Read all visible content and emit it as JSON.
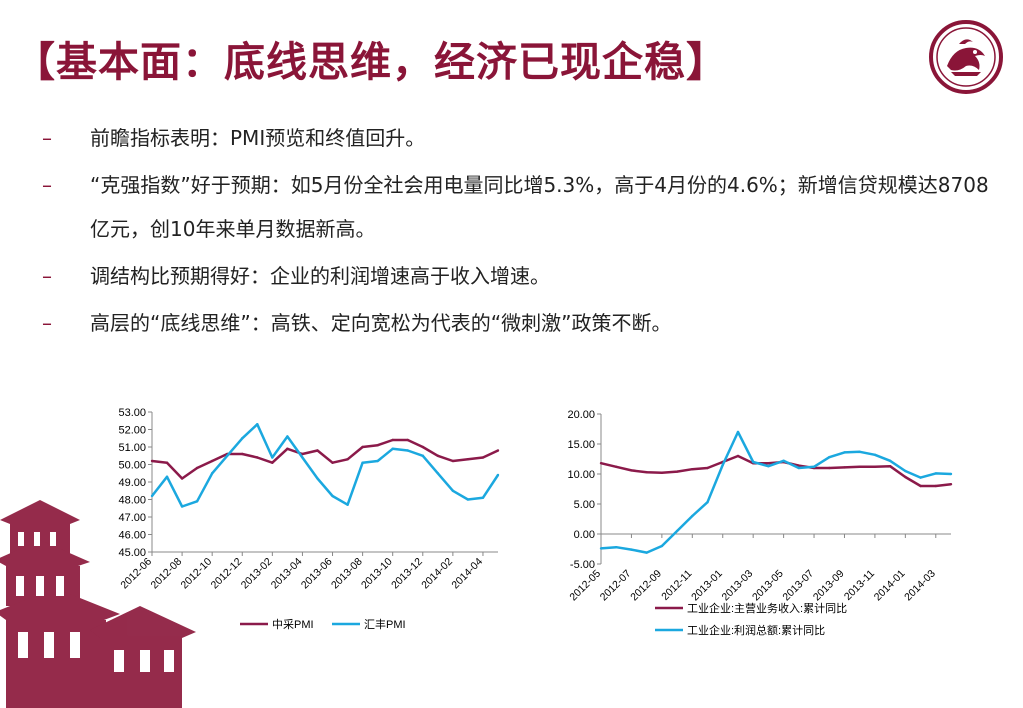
{
  "slide": {
    "title": "【基本面：底线思维，经济已现企稳】",
    "bullets": [
      "前瞻指标表明：PMI预览和终值回升。",
      "“克强指数”好于预期：如5月份全社会用电量同比增5.3%，高于4月份的4.6%；新增信贷规模达8708亿元，创10年来单月数据新高。",
      "调结构比预期得好：企业的利润增速高于收入增速。",
      "高层的“底线思维”：高铁、定向宽松为代表的“微刺激”政策不断。"
    ],
    "bullet_dash": "–"
  },
  "colors": {
    "title": "#8a1538",
    "series_primary": "#8b1a4a",
    "series_secondary": "#1ba8df",
    "decor": "#8a1538"
  },
  "chart_data": [
    {
      "type": "line",
      "title": "",
      "xlabel": "",
      "ylabel": "",
      "ylim": [
        45,
        53
      ],
      "yticks": [
        "45.00",
        "46.00",
        "47.00",
        "48.00",
        "49.00",
        "50.00",
        "51.00",
        "52.00",
        "53.00"
      ],
      "x": [
        "2012-06",
        "2012-07",
        "2012-08",
        "2012-09",
        "2012-10",
        "2012-11",
        "2012-12",
        "2013-01",
        "2013-02",
        "2013-03",
        "2013-04",
        "2013-05",
        "2013-06",
        "2013-07",
        "2013-08",
        "2013-09",
        "2013-10",
        "2013-11",
        "2013-12",
        "2014-01",
        "2014-02",
        "2014-03",
        "2014-04",
        "2014-05"
      ],
      "xtick_labels": [
        "2012-06",
        "2012-08",
        "2012-10",
        "2012-12",
        "2013-02",
        "2013-04",
        "2013-06",
        "2013-08",
        "2013-10",
        "2013-12",
        "2014-02",
        "2014-04"
      ],
      "series": [
        {
          "name": "中采PMI",
          "color": "#8b1a4a",
          "values": [
            50.2,
            50.1,
            49.2,
            49.8,
            50.2,
            50.6,
            50.6,
            50.4,
            50.1,
            50.9,
            50.6,
            50.8,
            50.1,
            50.3,
            51.0,
            51.1,
            51.4,
            51.4,
            51.0,
            50.5,
            50.2,
            50.3,
            50.4,
            50.8
          ]
        },
        {
          "name": "汇丰PMI",
          "color": "#1ba8df",
          "values": [
            48.2,
            49.3,
            47.6,
            47.9,
            49.5,
            50.5,
            51.5,
            52.3,
            50.4,
            51.6,
            50.4,
            49.2,
            48.2,
            47.7,
            50.1,
            50.2,
            50.9,
            50.8,
            50.5,
            49.5,
            48.5,
            48.0,
            48.1,
            49.4
          ]
        }
      ],
      "legend_position": "bottom"
    },
    {
      "type": "line",
      "title": "",
      "xlabel": "",
      "ylabel": "",
      "ylim": [
        -5,
        20
      ],
      "yticks": [
        "-5.00",
        "0.00",
        "5.00",
        "10.00",
        "15.00",
        "20.00"
      ],
      "x": [
        "2012-05",
        "2012-06",
        "2012-07",
        "2012-08",
        "2012-09",
        "2012-10",
        "2012-11",
        "2012-12",
        "2013-01",
        "2013-02",
        "2013-03",
        "2013-04",
        "2013-05",
        "2013-06",
        "2013-07",
        "2013-08",
        "2013-09",
        "2013-10",
        "2013-11",
        "2013-12",
        "2014-01",
        "2014-02",
        "2014-03",
        "2014-04"
      ],
      "xtick_labels": [
        "2012-05",
        "2012-07",
        "2012-09",
        "2012-11",
        "2013-01",
        "2013-03",
        "2013-05",
        "2013-07",
        "2013-09",
        "2013-11",
        "2014-01",
        "2014-03"
      ],
      "series": [
        {
          "name": "工业企业:主营业务收入:累计同比",
          "color": "#8b1a4a",
          "values": [
            11.8,
            11.2,
            10.6,
            10.3,
            10.2,
            10.4,
            10.8,
            11.0,
            12.0,
            13.0,
            11.8,
            11.8,
            12.0,
            11.4,
            11.0,
            11.0,
            11.1,
            11.2,
            11.2,
            11.3,
            9.5,
            8.0,
            8.0,
            8.3
          ]
        },
        {
          "name": "工业企业:利润总额:累计同比",
          "color": "#1ba8df",
          "values": [
            -2.4,
            -2.2,
            -2.6,
            -3.1,
            -2.0,
            0.5,
            3.0,
            5.3,
            11.5,
            17.0,
            12.0,
            11.3,
            12.2,
            11.0,
            11.2,
            12.8,
            13.6,
            13.7,
            13.2,
            12.2,
            10.5,
            9.4,
            10.1,
            10.0
          ]
        }
      ],
      "legend_position": "bottom"
    }
  ]
}
